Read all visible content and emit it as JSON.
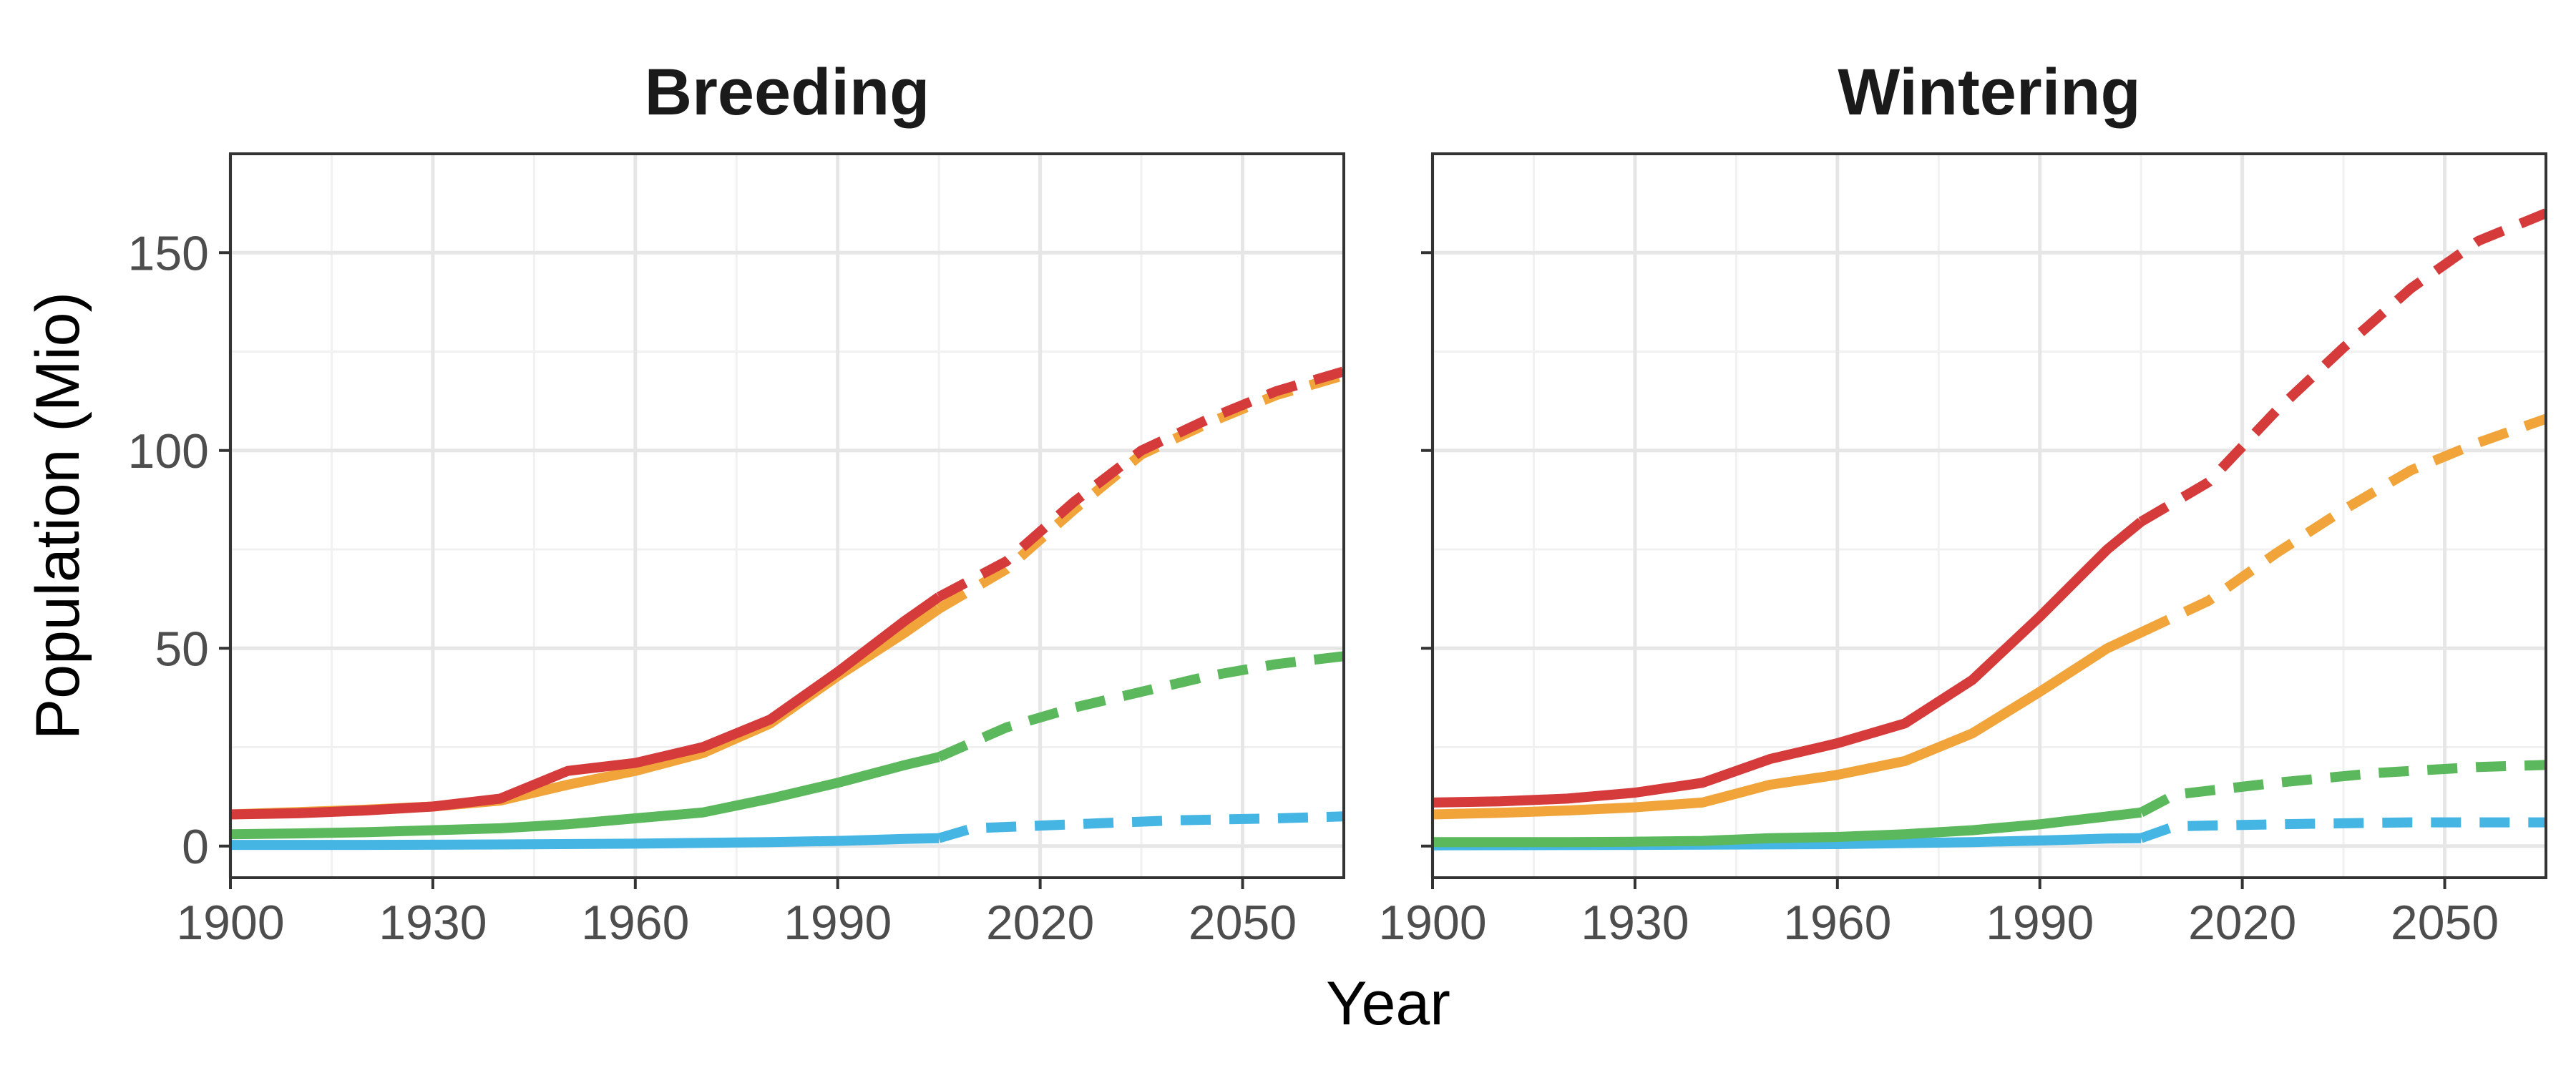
{
  "chart_data": [
    {
      "type": "line",
      "title": "Breeding",
      "xlabel": "Year",
      "ylabel": "Population (Mio)",
      "xlim": [
        1900,
        2065
      ],
      "ylim": [
        -8,
        175
      ],
      "x_ticks": [
        1900,
        1930,
        1960,
        1990,
        2020,
        2050
      ],
      "y_ticks": [
        0,
        50,
        100,
        150
      ],
      "grid": true,
      "legend": "none",
      "series": [
        {
          "color": "#d63b3b",
          "observed": [
            [
              1900,
              8
            ],
            [
              1910,
              8.3
            ],
            [
              1920,
              9
            ],
            [
              1930,
              10
            ],
            [
              1940,
              12
            ],
            [
              1950,
              19
            ],
            [
              1960,
              21
            ],
            [
              1970,
              25
            ],
            [
              1980,
              32
            ],
            [
              1990,
              44
            ],
            [
              2000,
              57
            ],
            [
              2005,
              63
            ]
          ],
          "projected": [
            [
              2005,
              63
            ],
            [
              2015,
              72
            ],
            [
              2025,
              87
            ],
            [
              2035,
              100
            ],
            [
              2045,
              108
            ],
            [
              2055,
              115
            ],
            [
              2065,
              120
            ]
          ]
        },
        {
          "color": "#f0a43a",
          "observed": [
            [
              1900,
              8
            ],
            [
              1910,
              8.6
            ],
            [
              1920,
              9.2
            ],
            [
              1930,
              10
            ],
            [
              1940,
              11.5
            ],
            [
              1950,
              15.5
            ],
            [
              1960,
              19
            ],
            [
              1970,
              23.5
            ],
            [
              1980,
              31
            ],
            [
              1990,
              43
            ],
            [
              2000,
              54
            ],
            [
              2005,
              60
            ]
          ],
          "projected": [
            [
              2005,
              60
            ],
            [
              2015,
              70
            ],
            [
              2025,
              85
            ],
            [
              2035,
              99
            ],
            [
              2045,
              107
            ],
            [
              2055,
              114
            ],
            [
              2065,
              119
            ]
          ]
        },
        {
          "color": "#5cb85c",
          "observed": [
            [
              1900,
              3
            ],
            [
              1910,
              3.2
            ],
            [
              1920,
              3.5
            ],
            [
              1930,
              4
            ],
            [
              1940,
              4.5
            ],
            [
              1950,
              5.5
            ],
            [
              1960,
              7
            ],
            [
              1970,
              8.5
            ],
            [
              1980,
              12
            ],
            [
              1990,
              16
            ],
            [
              2000,
              20.5
            ],
            [
              2005,
              22.5
            ]
          ],
          "projected": [
            [
              2005,
              22.5
            ],
            [
              2015,
              30
            ],
            [
              2025,
              35
            ],
            [
              2035,
              39
            ],
            [
              2045,
              43
            ],
            [
              2055,
              46
            ],
            [
              2065,
              48
            ]
          ]
        },
        {
          "color": "#45b5e3",
          "observed": [
            [
              1900,
              0.3
            ],
            [
              1920,
              0.3
            ],
            [
              1940,
              0.4
            ],
            [
              1960,
              0.6
            ],
            [
              1980,
              1
            ],
            [
              1990,
              1.3
            ],
            [
              2000,
              1.8
            ],
            [
              2005,
              2
            ]
          ],
          "projected": [
            [
              2005,
              2
            ],
            [
              2010,
              4.5
            ],
            [
              2025,
              5.5
            ],
            [
              2040,
              6.5
            ],
            [
              2055,
              7
            ],
            [
              2065,
              7.5
            ]
          ]
        }
      ]
    },
    {
      "type": "line",
      "title": "Wintering",
      "xlabel": "Year",
      "ylabel": "Population (Mio)",
      "xlim": [
        1900,
        2065
      ],
      "ylim": [
        -8,
        175
      ],
      "x_ticks": [
        1900,
        1930,
        1960,
        1990,
        2020,
        2050
      ],
      "y_ticks": [
        0,
        50,
        100,
        150
      ],
      "grid": true,
      "legend": "none",
      "series": [
        {
          "color": "#d63b3b",
          "observed": [
            [
              1900,
              11
            ],
            [
              1910,
              11.3
            ],
            [
              1920,
              12
            ],
            [
              1930,
              13.5
            ],
            [
              1940,
              16
            ],
            [
              1950,
              22
            ],
            [
              1960,
              26
            ],
            [
              1970,
              31
            ],
            [
              1980,
              42
            ],
            [
              1990,
              58
            ],
            [
              2000,
              75
            ],
            [
              2005,
              82
            ]
          ],
          "projected": [
            [
              2005,
              82
            ],
            [
              2015,
              92
            ],
            [
              2025,
              110
            ],
            [
              2035,
              126
            ],
            [
              2045,
              141
            ],
            [
              2055,
              153
            ],
            [
              2065,
              160
            ]
          ]
        },
        {
          "color": "#f0a43a",
          "observed": [
            [
              1900,
              8
            ],
            [
              1910,
              8.4
            ],
            [
              1920,
              9
            ],
            [
              1930,
              9.8
            ],
            [
              1940,
              11
            ],
            [
              1950,
              15.5
            ],
            [
              1960,
              18
            ],
            [
              1970,
              21.5
            ],
            [
              1980,
              28.5
            ],
            [
              1990,
              39
            ],
            [
              2000,
              50
            ],
            [
              2005,
              54
            ]
          ],
          "projected": [
            [
              2005,
              54
            ],
            [
              2015,
              62
            ],
            [
              2025,
              74
            ],
            [
              2035,
              85
            ],
            [
              2045,
              95
            ],
            [
              2055,
              102
            ],
            [
              2065,
              108
            ]
          ]
        },
        {
          "color": "#5cb85c",
          "observed": [
            [
              1900,
              1
            ],
            [
              1910,
              1
            ],
            [
              1920,
              1
            ],
            [
              1930,
              1.1
            ],
            [
              1940,
              1.3
            ],
            [
              1950,
              2
            ],
            [
              1960,
              2.3
            ],
            [
              1970,
              3
            ],
            [
              1980,
              4
            ],
            [
              1990,
              5.5
            ],
            [
              2000,
              7.5
            ],
            [
              2005,
              8.5
            ]
          ],
          "projected": [
            [
              2005,
              8.5
            ],
            [
              2010,
              13
            ],
            [
              2025,
              16
            ],
            [
              2040,
              18.5
            ],
            [
              2055,
              20
            ],
            [
              2065,
              20.5
            ]
          ]
        },
        {
          "color": "#45b5e3",
          "observed": [
            [
              1900,
              0.2
            ],
            [
              1930,
              0.3
            ],
            [
              1960,
              0.5
            ],
            [
              1980,
              1
            ],
            [
              1990,
              1.4
            ],
            [
              2000,
              1.9
            ],
            [
              2005,
              2
            ]
          ],
          "projected": [
            [
              2005,
              2
            ],
            [
              2010,
              5
            ],
            [
              2025,
              5.5
            ],
            [
              2045,
              6
            ],
            [
              2065,
              6
            ]
          ]
        }
      ]
    }
  ]
}
